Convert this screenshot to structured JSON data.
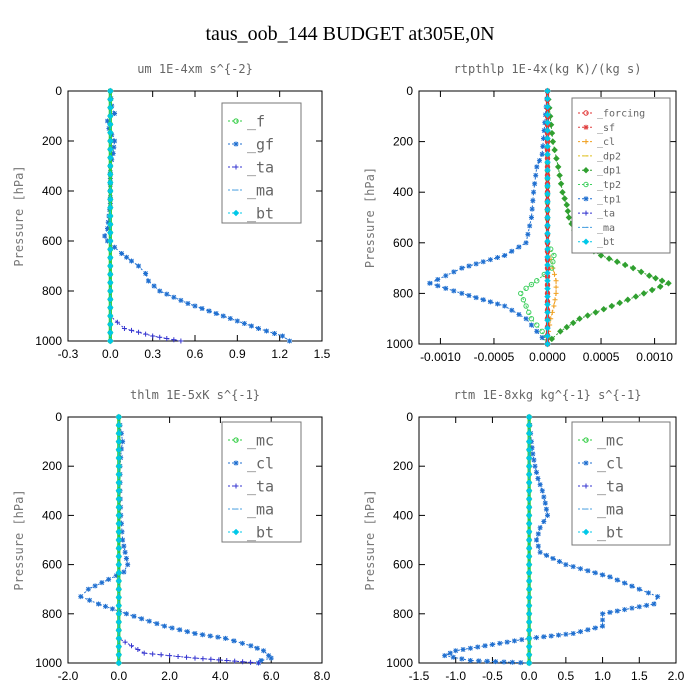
{
  "figure_title": "taus_oob_144  BUDGET at305E,0N",
  "chart_data": [
    {
      "type": "line",
      "title": "um  1E-4xm s^{-2}",
      "ylabel": "Pressure [hPa]",
      "xlabel": "",
      "xlim": [
        -0.3,
        1.5
      ],
      "ylim": [
        1000,
        0
      ],
      "xticks": [
        "-0.3",
        "0.0",
        "0.3",
        "0.6",
        "0.9",
        "1.2",
        "1.5"
      ],
      "yticks": [
        "0",
        "200",
        "400",
        "600",
        "800",
        "1000"
      ],
      "legend_position": "top-right",
      "series": [
        {
          "name": "_f",
          "color": "#2ecc40",
          "y": [
            0,
            100,
            200,
            300,
            400,
            500,
            600,
            700,
            800,
            900,
            1000
          ],
          "x": [
            0,
            0,
            0,
            0,
            0,
            0,
            0,
            0,
            0,
            0,
            0
          ]
        },
        {
          "name": "_gf",
          "color": "#1f6fd0",
          "y": [
            0,
            60,
            90,
            120,
            150,
            200,
            250,
            300,
            350,
            400,
            450,
            500,
            550,
            580,
            600,
            650,
            680,
            700,
            730,
            760,
            800,
            850,
            900,
            950,
            980,
            1000
          ],
          "x": [
            0.0,
            0.01,
            0.03,
            -0.02,
            -0.01,
            0.03,
            0.02,
            0.0,
            0.0,
            0.0,
            0.0,
            -0.01,
            -0.02,
            -0.04,
            -0.02,
            0.08,
            0.15,
            0.2,
            0.25,
            0.27,
            0.35,
            0.55,
            0.8,
            1.05,
            1.22,
            1.27
          ]
        },
        {
          "name": "_ta",
          "color": "#3535d0",
          "y": [
            0,
            200,
            400,
            600,
            800,
            900,
            950,
            980,
            1000
          ],
          "x": [
            0,
            0,
            0,
            0,
            0,
            0,
            0.1,
            0.3,
            0.5
          ]
        },
        {
          "name": "_ma",
          "color": "#4aa0e0",
          "y": [
            0,
            200,
            400,
            600,
            800,
            1000
          ],
          "x": [
            0,
            0,
            0,
            0,
            0,
            0
          ]
        },
        {
          "name": "_bt",
          "color": "#00c8e8",
          "y": [
            0,
            200,
            400,
            600,
            800,
            1000
          ],
          "x": [
            0,
            0,
            0,
            0,
            0,
            0
          ]
        }
      ]
    },
    {
      "type": "line",
      "title": "rtpthlp  1E-4x(kg K)/(kg s)",
      "ylabel": "Pressure [hPa]",
      "xlabel": "",
      "xlim": [
        -0.0012,
        0.0012
      ],
      "ylim": [
        1000,
        0
      ],
      "xticks": [
        "-0.0010",
        "-0.0005",
        "0.0000",
        "0.0005",
        "0.0010"
      ],
      "xtick_values": [
        -0.001,
        -0.0005,
        0,
        0.0005,
        0.001
      ],
      "yticks": [
        "0",
        "200",
        "400",
        "600",
        "800",
        "1000"
      ],
      "legend_position": "top-right",
      "series": [
        {
          "name": "_forcing",
          "color": "#e03030",
          "y": [
            0,
            200,
            400,
            600,
            800,
            1000
          ],
          "x": [
            0,
            0,
            0,
            0,
            0,
            0
          ]
        },
        {
          "name": "_sf",
          "color": "#e04040",
          "y": [
            0,
            200,
            400,
            600,
            800,
            1000
          ],
          "x": [
            0,
            0,
            0,
            0,
            0,
            0
          ]
        },
        {
          "name": "_cl",
          "color": "#f0a020",
          "y": [
            0,
            600,
            700,
            750,
            800,
            850,
            900,
            950,
            1000
          ],
          "x": [
            0,
            0,
            5e-05,
            8e-05,
            8e-05,
            6e-05,
            3e-05,
            1e-05,
            0
          ]
        },
        {
          "name": "_dp2",
          "color": "#e0c020",
          "y": [
            0,
            500,
            1000
          ],
          "x": [
            0,
            0,
            0
          ]
        },
        {
          "name": "_dp1",
          "color": "#30a030",
          "y": [
            0,
            200,
            300,
            400,
            450,
            500,
            550,
            600,
            650,
            700,
            730,
            760,
            800,
            850,
            900,
            950,
            980,
            1000
          ],
          "x": [
            0,
            5e-05,
            0.0001,
            0.00014,
            0.00018,
            0.0002,
            0.00025,
            0.0003,
            0.0005,
            0.0008,
            0.00095,
            0.00113,
            0.0009,
            0.0006,
            0.0003,
            0.00012,
            4e-05,
            0
          ]
        },
        {
          "name": "_tp2",
          "color": "#40d060",
          "y": [
            0,
            600,
            650,
            700,
            750,
            780,
            800,
            850,
            900,
            950,
            1000
          ],
          "x": [
            0,
            0,
            6e-05,
            4e-05,
            -0.0001,
            -0.0002,
            -0.00025,
            -0.0002,
            -0.00015,
            -5e-05,
            0
          ]
        },
        {
          "name": "_tp1",
          "color": "#1f6fd0",
          "y": [
            0,
            250,
            300,
            400,
            500,
            600,
            650,
            700,
            730,
            760,
            800,
            850,
            900,
            950,
            1000
          ],
          "x": [
            0,
            -5e-05,
            -0.0001,
            -0.00013,
            -0.00015,
            -0.0002,
            -0.0004,
            -0.0008,
            -0.00095,
            -0.0011,
            -0.0008,
            -0.0004,
            -0.0002,
            -0.0001,
            0
          ]
        },
        {
          "name": "_ta",
          "color": "#3535d0",
          "y": [
            0,
            500,
            1000
          ],
          "x": [
            0,
            0,
            0
          ]
        },
        {
          "name": "_ma",
          "color": "#4aa0e0",
          "y": [
            0,
            500,
            1000
          ],
          "x": [
            0,
            0,
            0
          ]
        },
        {
          "name": "_bt",
          "color": "#00c8e8",
          "y": [
            0,
            500,
            1000
          ],
          "x": [
            0,
            0,
            0
          ]
        }
      ]
    },
    {
      "type": "line",
      "title": "thlm  1E-5xK s^{-1}",
      "ylabel": "Pressure [hPa]",
      "xlabel": "",
      "xlim": [
        -2.0,
        8.0
      ],
      "ylim": [
        1000,
        0
      ],
      "xticks": [
        "-2.0",
        "0.0",
        "2.0",
        "4.0",
        "6.0",
        "8.0"
      ],
      "yticks": [
        "0",
        "200",
        "400",
        "600",
        "800",
        "1000"
      ],
      "legend_position": "top-right",
      "series": [
        {
          "name": "_mc",
          "color": "#2ecc40",
          "y": [
            0,
            100,
            200,
            300,
            400,
            500,
            600,
            700,
            800,
            900,
            1000
          ],
          "x": [
            0,
            0,
            0,
            0,
            0,
            0,
            0,
            0,
            0,
            0,
            0
          ]
        },
        {
          "name": "_cl",
          "color": "#1f6fd0",
          "y": [
            0,
            100,
            130,
            200,
            300,
            400,
            500,
            550,
            600,
            630,
            660,
            700,
            730,
            760,
            800,
            850,
            880,
            900,
            930,
            950,
            970,
            980,
            990,
            1000
          ],
          "x": [
            0.0,
            0.15,
            0.1,
            0.05,
            0.05,
            0.08,
            0.15,
            0.25,
            0.35,
            0.2,
            -0.4,
            -1.2,
            -1.5,
            -0.8,
            0.3,
            1.8,
            3.0,
            4.2,
            5.2,
            5.7,
            5.9,
            6.0,
            5.6,
            5.5
          ]
        },
        {
          "name": "_ta",
          "color": "#3535d0",
          "y": [
            0,
            500,
            900,
            960,
            980,
            1000
          ],
          "x": [
            0,
            0,
            0,
            1,
            3,
            5.5
          ]
        },
        {
          "name": "_ma",
          "color": "#4aa0e0",
          "y": [
            0,
            500,
            1000
          ],
          "x": [
            0,
            0,
            0
          ]
        },
        {
          "name": "_bt",
          "color": "#00c8e8",
          "y": [
            0,
            500,
            1000
          ],
          "x": [
            0,
            0,
            0
          ]
        }
      ]
    },
    {
      "type": "line",
      "title": "rtm  1E-8xkg kg^{-1} s^{-1}",
      "ylabel": "Pressure [hPa]",
      "xlabel": "",
      "xlim": [
        -1.5,
        2.0
      ],
      "ylim": [
        1000,
        0
      ],
      "xticks": [
        "-1.5",
        "-1.0",
        "-0.5",
        "0.0",
        "0.5",
        "1.0",
        "1.5",
        "2.0"
      ],
      "yticks": [
        "0",
        "200",
        "400",
        "600",
        "800",
        "1000"
      ],
      "legend_position": "top-right",
      "series": [
        {
          "name": "_mc",
          "color": "#2ecc40",
          "y": [
            0,
            100,
            200,
            300,
            400,
            500,
            600,
            700,
            800,
            900,
            1000
          ],
          "x": [
            0,
            0,
            0,
            0,
            0,
            0,
            0,
            0,
            0,
            0,
            0
          ]
        },
        {
          "name": "_cl",
          "color": "#1f6fd0",
          "y": [
            0,
            100,
            150,
            200,
            250,
            300,
            350,
            400,
            450,
            500,
            550,
            600,
            650,
            700,
            730,
            760,
            800,
            850,
            880,
            900,
            930,
            950,
            970,
            990,
            1000
          ],
          "x": [
            0.0,
            0.03,
            0.05,
            0.08,
            0.12,
            0.18,
            0.22,
            0.25,
            0.15,
            0.1,
            0.15,
            0.5,
            1.1,
            1.5,
            1.75,
            1.7,
            1.0,
            1.0,
            0.6,
            0.0,
            -0.6,
            -1.0,
            -1.15,
            -0.8,
            0.0
          ]
        },
        {
          "name": "_ta",
          "color": "#3535d0",
          "y": [
            0,
            500,
            1000
          ],
          "x": [
            0,
            0,
            0
          ]
        },
        {
          "name": "_ma",
          "color": "#4aa0e0",
          "y": [
            0,
            500,
            1000
          ],
          "x": [
            0,
            0,
            0
          ]
        },
        {
          "name": "_bt",
          "color": "#00c8e8",
          "y": [
            0,
            500,
            1000
          ],
          "x": [
            0,
            0,
            0
          ]
        }
      ]
    }
  ]
}
